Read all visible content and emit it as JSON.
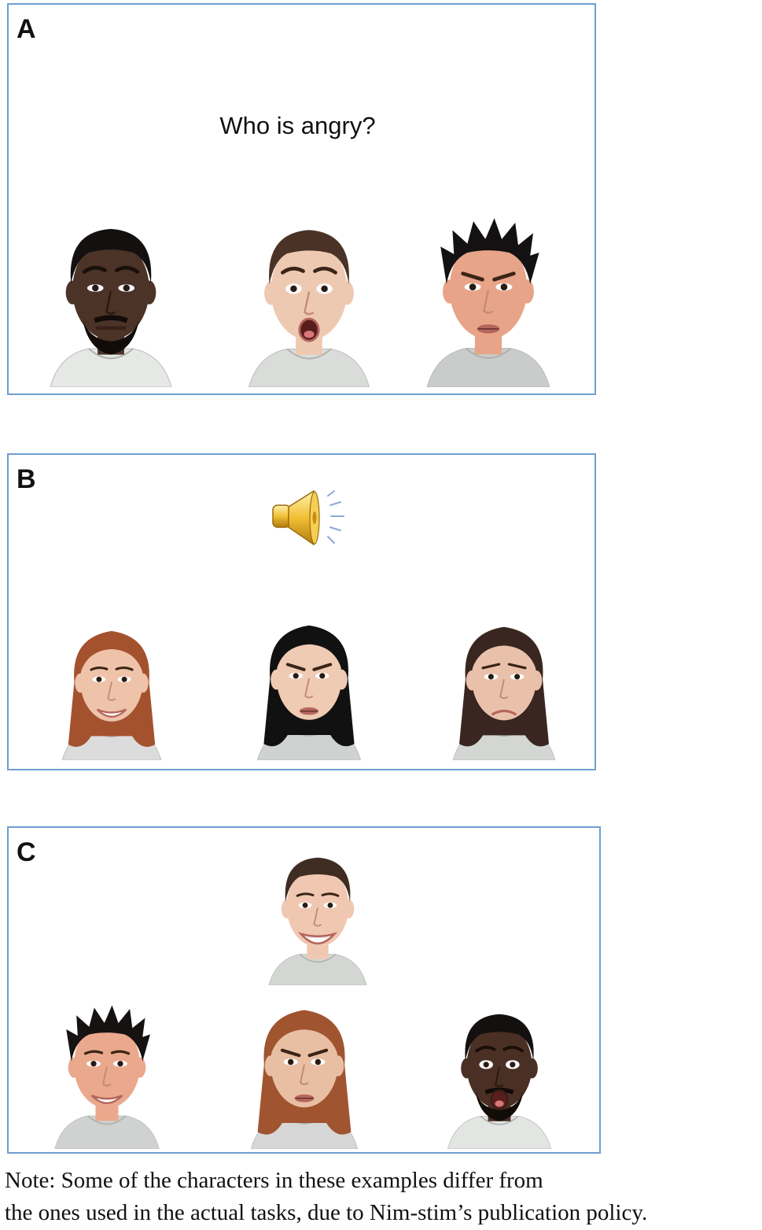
{
  "panels": {
    "a": {
      "letter": "A",
      "question": "Who is angry?",
      "faces": [
        {
          "name": "face-man-dark-puzzled",
          "skin": "#4b3327",
          "hair": "#151010",
          "hair_style": "short",
          "beard": true,
          "mouth": "flat",
          "brows": "raised",
          "shirt": "#e6e8e6"
        },
        {
          "name": "face-man-light-surprised",
          "skin": "#eec9b2",
          "hair": "#4a3326",
          "hair_style": "short",
          "beard": false,
          "mouth": "open",
          "brows": "raised",
          "shirt": "#d9dcd9"
        },
        {
          "name": "face-man-asian-frowning",
          "skin": "#e8a488",
          "hair": "#131111",
          "hair_style": "spiky",
          "beard": false,
          "mouth": "pout",
          "brows": "angry",
          "shirt": "#c9ccca"
        }
      ]
    },
    "b": {
      "letter": "B",
      "speaker_icon": "speaker-icon",
      "faces": [
        {
          "name": "face-woman-redhead-smiling",
          "skin": "#efc3a9",
          "hair": "#a4522e",
          "hair_style": "long",
          "beard": false,
          "mouth": "smile",
          "brows": "normal",
          "shirt": "#dcdcdc"
        },
        {
          "name": "face-woman-asian-frowning",
          "skin": "#efcbb3",
          "hair": "#111111",
          "hair_style": "long",
          "beard": false,
          "mouth": "pout",
          "brows": "angry",
          "shirt": "#cfd2d0"
        },
        {
          "name": "face-woman-brunette-sad",
          "skin": "#e9c1aa",
          "hair": "#3a2620",
          "hair_style": "long",
          "beard": false,
          "mouth": "sad",
          "brows": "sad",
          "shirt": "#d4d6d4"
        }
      ]
    },
    "c": {
      "letter": "C",
      "faces": [
        {
          "name": "face-target-man-smiling",
          "skin": "#f0c8b2",
          "hair": "#3f2c22",
          "hair_style": "short",
          "beard": false,
          "mouth": "grin",
          "brows": "normal",
          "shirt": "#d3d6d3"
        },
        {
          "name": "face-man-asian-smiling",
          "skin": "#eaa98c",
          "hair": "#161212",
          "hair_style": "spiky",
          "beard": false,
          "mouth": "smile",
          "brows": "normal",
          "shirt": "#cfd2d0"
        },
        {
          "name": "face-woman-redhead-angry",
          "skin": "#e9bfa3",
          "hair": "#a0542f",
          "hair_style": "long",
          "beard": false,
          "mouth": "pout",
          "brows": "angry",
          "shirt": "#d6d7d6"
        },
        {
          "name": "face-man-dark-surprised",
          "skin": "#4a3024",
          "hair": "#141010",
          "hair_style": "short",
          "beard": true,
          "mouth": "open",
          "brows": "raised",
          "shirt": "#e3e5e3"
        }
      ]
    }
  },
  "note": {
    "line1": "Note: Some of the characters in these examples differ from",
    "line2": "the ones used in the actual tasks, due to Nim-stim’s publication policy."
  }
}
